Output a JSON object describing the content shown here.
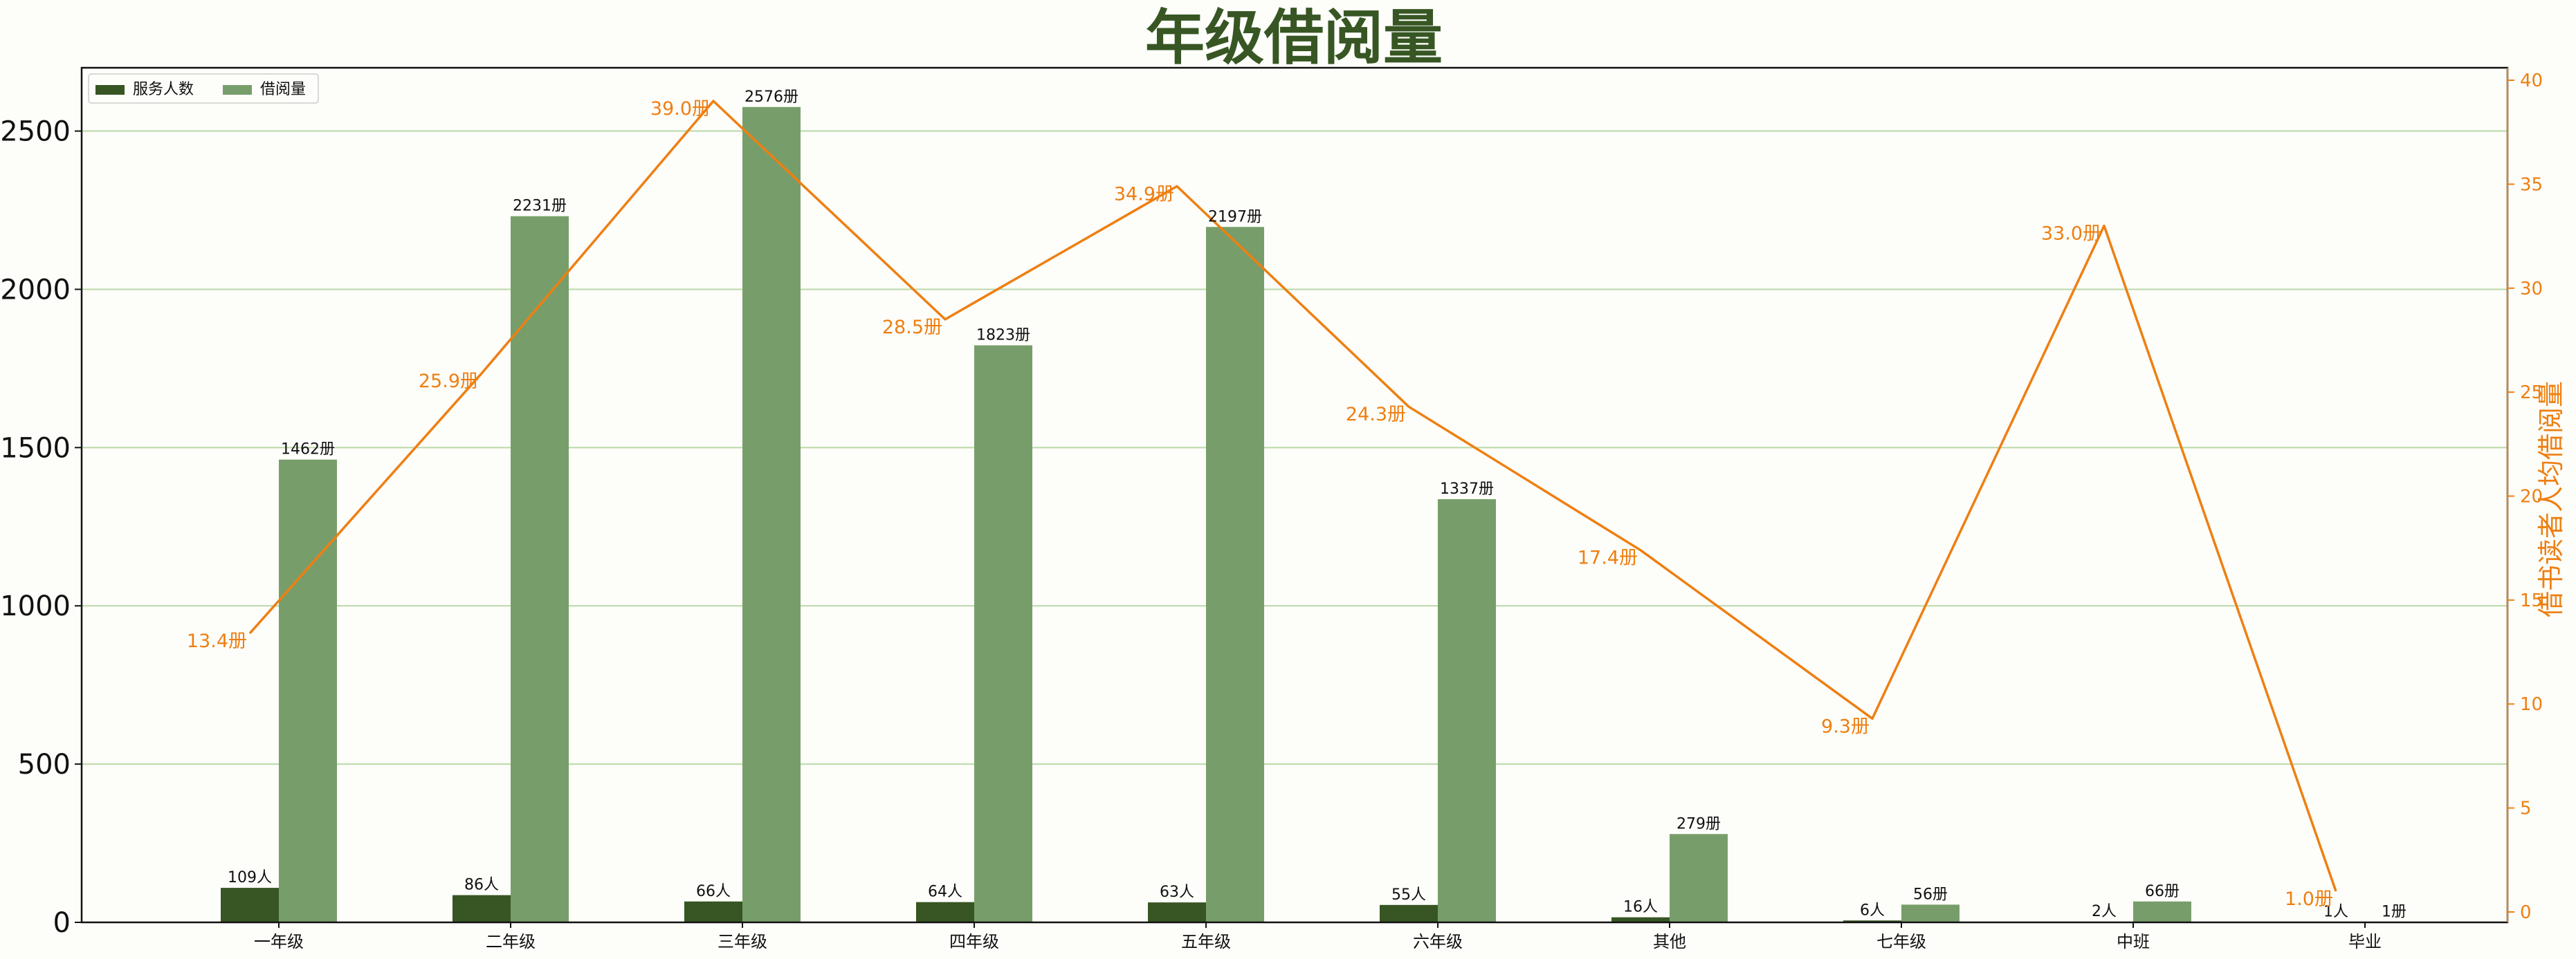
{
  "chart_data": {
    "type": "bar",
    "title": "年级借阅量",
    "categories": [
      "一年级",
      "二年级",
      "三年级",
      "四年级",
      "五年级",
      "六年级",
      "其他",
      "七年级",
      "中班",
      "毕业"
    ],
    "series": [
      {
        "name": "服务人数",
        "values": [
          109,
          86,
          66,
          64,
          63,
          55,
          16,
          6,
          2,
          1
        ],
        "value_labels": [
          "109人",
          "86人",
          "66人",
          "64人",
          "63人",
          "55人",
          "16人",
          "6人",
          "2人",
          "1人"
        ],
        "color": "#375623"
      },
      {
        "name": "借阅量",
        "values": [
          1462,
          2231,
          2576,
          1823,
          2197,
          1337,
          279,
          56,
          66,
          1
        ],
        "value_labels": [
          "1462册",
          "2231册",
          "2576册",
          "1823册",
          "2197册",
          "1337册",
          "279册",
          "56册",
          "66册",
          "1册"
        ],
        "color": "#779e6a"
      }
    ],
    "line": {
      "values": [
        13.4,
        25.9,
        39.0,
        28.5,
        34.9,
        24.3,
        17.4,
        9.3,
        33.0,
        1.0
      ],
      "value_labels": [
        "13.4册",
        "25.9册",
        "39.0册",
        "28.5册",
        "34.9册",
        "24.3册",
        "17.4册",
        "9.3册",
        "33.0册",
        "1.0册"
      ],
      "color": "#ee7f11",
      "axis": "right"
    },
    "xlabel": "",
    "ylabel": "",
    "y2label": "借书读者人均借阅量",
    "ylim": [
      0,
      2700
    ],
    "y2lim": [
      -0.5,
      40.6
    ],
    "yticks": [
      0,
      500,
      1000,
      1500,
      2000,
      2500
    ],
    "y2ticks": [
      0,
      5,
      10,
      15,
      20,
      25,
      30,
      35,
      40
    ],
    "grid": "horizontal",
    "grid_color": "#b9d9a7",
    "legend": "top-left",
    "title_color": "#375623"
  }
}
